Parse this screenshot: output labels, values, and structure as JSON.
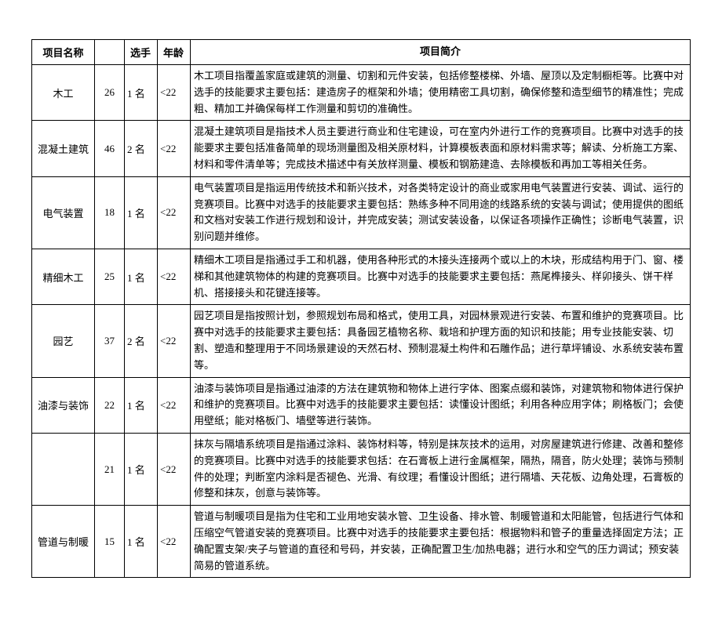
{
  "table": {
    "headers": {
      "name": "项目名称",
      "num": "",
      "player": "选手",
      "age": "年龄",
      "desc": "项目简介"
    },
    "rows": [
      {
        "name": "木工",
        "num": "26",
        "player": "1 名",
        "age": "<22",
        "desc": "木工项目指覆盖家庭或建筑的测量、切割和元件安装，包括修整楼梯、外墙、屋顶以及定制橱柜等。比赛中对选手的技能要求主要包括：建造房子的框架和外墙；使用精密工具切割，确保修整和造型细节的精准性；完成粗、精加工并确保每样工作测量和剪切的准确性。"
      },
      {
        "name": "混凝土建筑",
        "num": "46",
        "player": "2 名",
        "age": "<22",
        "desc": "混凝土建筑项目是指技术人员主要进行商业和住宅建设，可在室内外进行工作的竞赛项目。比赛中对选手的技能要求主要包括准备简单的现场测量图及相关原材料，计算模板表面和原材料需求等；解读、分析施工方案、材料和零件清单等；完成技术描述中有关放样测量、模板和钢筋建造、去除模板和再加工等相关任务。"
      },
      {
        "name": "电气装置",
        "num": "18",
        "player": "1 名",
        "age": "<22",
        "desc": "电气装置项目是指运用传统技术和新兴技术，对各类特定设计的商业或家用电气装置进行安装、调试、运行的竞赛项目。比赛中对选手的技能要求主要包括：熟练多种不同用途的线路系统的安装与调试；使用提供的图纸和文档对安装工作进行规划和设计，并完成安装；测试安装设备，以保证各项操作正确性；诊断电气装置，识别问题并维修。"
      },
      {
        "name": "精细木工",
        "num": "25",
        "player": "1 名",
        "age": "<22",
        "desc": "精细木工项目是指通过手工和机器，使用各种形式的木接头连接两个或以上的木块，形成结构用于门、窗、楼梯和其他建筑物体的构建的竞赛项目。比赛中对选手的技能要求主要包括：燕尾榫接头、样卯接头、饼干样机、搭接接头和花键连接等。"
      },
      {
        "name": "园艺",
        "num": "37",
        "player": "2 名",
        "age": "<22",
        "desc": "园艺项目是指按照计划，参照规划布局和格式，使用工具，对园林景观进行安装、布置和维护的竞赛项目。比赛中对选手的技能要求主要包括：具备园艺植物名称、栽培和护理方面的知识和技能；用专业技能安装、切割、塑造和整理用于不同场景建设的天然石材、预制混凝土构件和石雕作品；进行草坪铺设、水系统安装布置等。"
      },
      {
        "name": "油漆与装饰",
        "num": "22",
        "player": "1 名",
        "age": "<22",
        "desc": "油漆与装饰项目是指通过油漆的方法在建筑物和物体上进行字体、图案点缀和装饰，对建筑物和物体进行保护和维护的竞赛项目。比赛中对选手的技能要求主要包括：读懂设计图纸；利用各种应用字体；刷格板门；会使用壁纸；能对格板门、墙壁等进行装饰。"
      },
      {
        "name": "",
        "num": "21",
        "player": "1 名",
        "age": "<22",
        "desc": "抹灰与隔墙系统项目是指通过涂料、装饰材料等，特别是抹灰技术的运用，对房屋建筑进行修建、改善和整修的竞赛项目。比赛中对选手的技能要求包括：在石膏板上进行金属框架，隔热，隔音，防火处理；装饰与预制件的处理；判断室内涂料是否褪色、光滑、有纹理；看懂设计图纸；进行隔墙、天花板、边角处理，石膏板的修整和抹灰，创意与装饰等。"
      },
      {
        "name": "管道与制暖",
        "num": "15",
        "player": "1 名",
        "age": "<22",
        "desc": "管道与制暖项目是指为住宅和工业用地安装水管、卫生设备、排水管、制暖管道和太阳能管，包括进行气体和压缩空气管道安装的竞赛项目。比赛中对选手的技能要求主要包括：根据物料和管子的重量选择固定方法；正确配置支架/夹子与管道的直径和号码，并安装，正确配置卫生/加热电器；进行水和空气的压力调试；预安装简易的管道系统。"
      }
    ]
  }
}
